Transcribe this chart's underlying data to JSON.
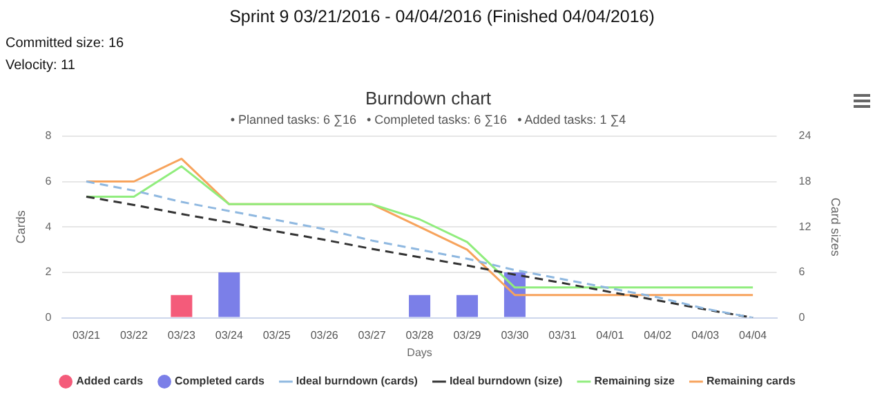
{
  "chart_data": {
    "type": "bar",
    "title": "Burndown chart",
    "subtitle": "• Planned tasks: 6 ∑16   • Completed tasks: 6 ∑16   • Added tasks: 1 ∑4",
    "annotations": [
      "Sprint 9 03/21/2016 - 04/04/2016 (Finished 04/04/2016)",
      "Committed size: 16",
      "Velocity: 11"
    ],
    "xlabel": "Days",
    "ylabel": "Cards",
    "y2label": "Card sizes",
    "categories": [
      "03/21",
      "03/22",
      "03/23",
      "03/24",
      "03/25",
      "03/26",
      "03/27",
      "03/28",
      "03/29",
      "03/30",
      "03/31",
      "04/01",
      "04/02",
      "04/03",
      "04/04"
    ],
    "series": [
      {
        "name": "Added cards",
        "color": "#f45b7a",
        "values": [
          null,
          null,
          1,
          null,
          null,
          null,
          null,
          null,
          null,
          null,
          null,
          null,
          null,
          null,
          null
        ]
      },
      {
        "name": "Completed cards",
        "color": "#7b7fe8",
        "values": [
          null,
          null,
          null,
          2,
          null,
          null,
          null,
          1,
          1,
          2,
          null,
          null,
          null,
          null,
          null
        ]
      },
      {
        "name": "Ideal burndown (cards)",
        "type": "line",
        "color": "#8fb8e0",
        "line_style": "dashed",
        "values": [
          6,
          5.6,
          5.1,
          4.7,
          4.3,
          3.9,
          3.4,
          3,
          2.6,
          2.1,
          1.7,
          1.3,
          0.9,
          0.4,
          0
        ]
      },
      {
        "name": "Ideal burndown (size)",
        "type": "line",
        "color": "#333333",
        "line_style": "dashed",
        "axis": "y2",
        "values": [
          16,
          14.9,
          13.7,
          12.6,
          11.4,
          10.3,
          9.1,
          8,
          6.9,
          5.7,
          4.6,
          3.4,
          2.3,
          1.1,
          0
        ]
      },
      {
        "name": "Remaining size",
        "type": "line",
        "color": "#90ed7d",
        "axis": "y2",
        "values": [
          16,
          16,
          20,
          15,
          15,
          15,
          15,
          13,
          10,
          4,
          4,
          4,
          4,
          4,
          4
        ]
      },
      {
        "name": "Remaining cards",
        "type": "line",
        "color": "#f7a35c",
        "values": [
          6,
          6,
          7,
          5,
          5,
          5,
          5,
          4,
          3,
          1,
          1,
          1,
          1,
          1,
          1
        ]
      }
    ],
    "ylim": [
      0,
      8
    ],
    "yticks": [
      0,
      2,
      4,
      6,
      8
    ],
    "y2lim": [
      0,
      24
    ],
    "y2ticks": [
      0,
      6,
      12,
      18,
      24
    ],
    "grid": "y",
    "legend": "bottom",
    "marker": "none"
  }
}
